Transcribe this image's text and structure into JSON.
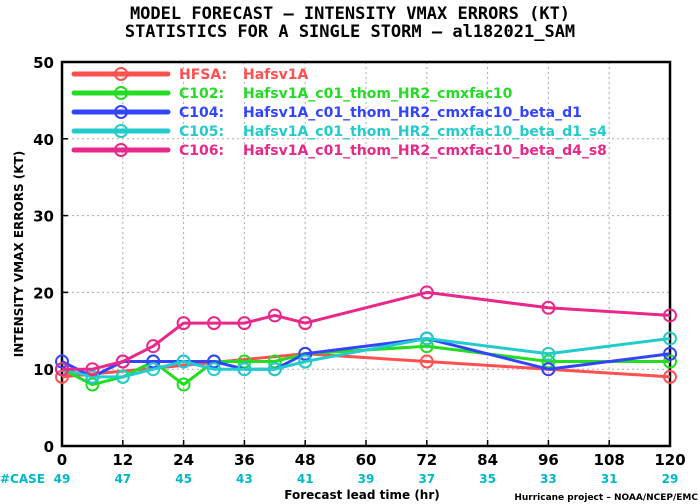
{
  "chart_data": {
    "type": "line",
    "title_line1": "MODEL FORECAST – INTENSITY VMAX ERRORS (KT)",
    "title_line2": "STATISTICS FOR A SINGLE STORM – al182021_SAM",
    "xlabel": "Forecast lead time (hr)",
    "ylabel": "INTENSITY VMAX ERRORS (KT)",
    "xlim": [
      0,
      120
    ],
    "ylim": [
      0,
      50
    ],
    "x_ticks": [
      0,
      12,
      24,
      36,
      48,
      60,
      72,
      84,
      96,
      108,
      120
    ],
    "y_ticks": [
      0,
      10,
      20,
      30,
      40,
      50
    ],
    "grid": true,
    "legend_position": "top-left",
    "case_label": "#CASE",
    "case_counts": [
      49,
      47,
      45,
      43,
      41,
      39,
      37,
      35,
      33,
      31,
      29
    ],
    "credit": "Hurricane project – NOAA/NCEP/EMC",
    "series": [
      {
        "id": "HFSA",
        "legend_key": "HFSA:",
        "legend_desc": "Hafsv1A",
        "color": "#ff5050",
        "x": [
          0,
          48,
          72,
          96,
          120
        ],
        "y": [
          9,
          12,
          11,
          10,
          9
        ]
      },
      {
        "id": "C102",
        "legend_key": "C102:",
        "legend_desc": "Hafsv1A_c01_thom_HR2_cmxfac10",
        "color": "#22dd22",
        "x": [
          0,
          6,
          12,
          18,
          24,
          30,
          36,
          42,
          48,
          72,
          96,
          120
        ],
        "y": [
          10,
          8,
          9,
          11,
          8,
          11,
          11,
          11,
          12,
          13,
          11,
          11
        ]
      },
      {
        "id": "C104",
        "legend_key": "C104:",
        "legend_desc": "Hafsv1A_c01_thom_HR2_cmxfac10_beta_d1",
        "color": "#3344ff",
        "x": [
          0,
          6,
          12,
          18,
          24,
          30,
          36,
          42,
          48,
          72,
          96,
          120
        ],
        "y": [
          11,
          9,
          11,
          11,
          11,
          11,
          10,
          10,
          12,
          14,
          10,
          12
        ]
      },
      {
        "id": "C105",
        "legend_key": "C105:",
        "legend_desc": "Hafsv1A_c01_thom_HR2_cmxfac10_beta_d1_s4",
        "color": "#22cccc",
        "x": [
          0,
          6,
          12,
          18,
          24,
          30,
          36,
          42,
          48,
          72,
          96,
          120
        ],
        "y": [
          10,
          9,
          9,
          10,
          11,
          10,
          10,
          10,
          11,
          14,
          12,
          14
        ]
      },
      {
        "id": "C106",
        "legend_key": "C106:",
        "legend_desc": "Hafsv1A_c01_thom_HR2_cmxfac10_beta_d4_s8",
        "color": "#e8288a",
        "x": [
          0,
          6,
          12,
          18,
          24,
          30,
          36,
          42,
          48,
          72,
          96,
          120
        ],
        "y": [
          10,
          10,
          11,
          13,
          16,
          16,
          16,
          17,
          16,
          20,
          18,
          17
        ]
      }
    ]
  }
}
